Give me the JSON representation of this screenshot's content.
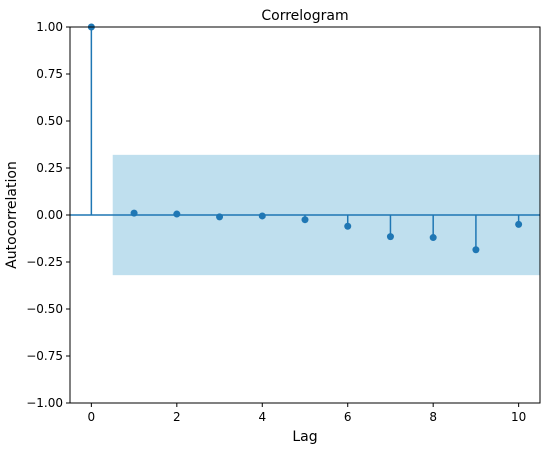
{
  "chart_data": {
    "type": "stem",
    "title": "Correlogram",
    "xlabel": "Lag",
    "ylabel": "Autocorrelation",
    "xlim": [
      -0.5,
      10.5
    ],
    "ylim": [
      -1.0,
      1.0
    ],
    "x_ticks": [
      0,
      2,
      4,
      6,
      8,
      10
    ],
    "x_tick_labels": [
      "0",
      "2",
      "4",
      "6",
      "8",
      "10"
    ],
    "y_ticks": [
      1.0,
      0.75,
      0.5,
      0.25,
      0.0,
      -0.25,
      -0.5,
      -0.75,
      -1.0
    ],
    "y_tick_labels": [
      "1.00",
      "0.75",
      "0.50",
      "0.25",
      "0.00",
      "−0.25",
      "−0.50",
      "−0.75",
      "−1.00"
    ],
    "lags": [
      0,
      1,
      2,
      3,
      4,
      5,
      6,
      7,
      8,
      9,
      10
    ],
    "values": [
      1.0,
      0.01,
      0.005,
      -0.01,
      -0.005,
      -0.025,
      -0.06,
      -0.115,
      -0.12,
      -0.185,
      -0.05
    ],
    "confidence_band": {
      "x_start": 0.5,
      "x_end": 10.5,
      "lower": -0.32,
      "upper": 0.32
    },
    "grid": false,
    "colors": {
      "stem": "#1f77b4",
      "band": "#a9d4e8",
      "zero_line": "#1f77b4"
    }
  }
}
